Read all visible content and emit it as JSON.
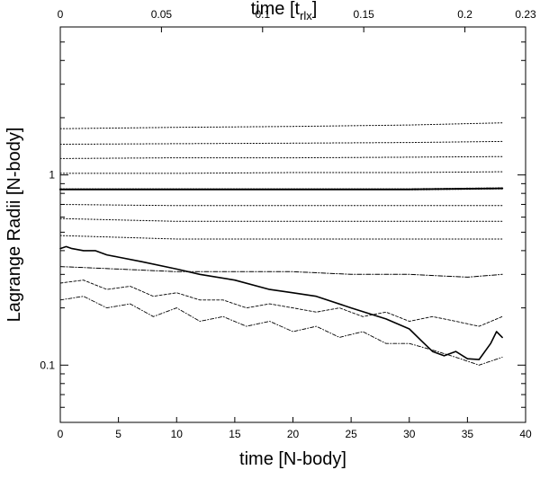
{
  "chart_data": {
    "type": "line",
    "title": "",
    "xlabel": "time [N-body]",
    "x2label": "time [t",
    "x2label_sub": "rlx",
    "x2label_close": "]",
    "ylabel": "Lagrange Radii [N-body]",
    "xlim": [
      0,
      40
    ],
    "ylim": [
      0.05,
      6.0
    ],
    "yscale": "log",
    "x2lim": [
      0,
      0.23
    ],
    "grid": false,
    "legend": "none",
    "xticks": [
      0,
      5,
      10,
      15,
      20,
      25,
      30,
      35,
      40
    ],
    "yticks": [
      {
        "value": 0.1,
        "label": "0.1"
      },
      {
        "value": 1,
        "label": "1"
      }
    ],
    "x2ticks": [
      {
        "value": 0,
        "label": "0"
      },
      {
        "value": 0.05,
        "label": "0.05"
      },
      {
        "value": 0.1,
        "label": "0.1"
      },
      {
        "value": 0.15,
        "label": "0.15"
      },
      {
        "value": 0.2,
        "label": "0.2"
      },
      {
        "value": 0.23,
        "label": "0.23"
      }
    ],
    "series": [
      {
        "style": "dotted",
        "x": [
          0,
          10,
          20,
          30,
          38
        ],
        "y": [
          1.75,
          1.78,
          1.8,
          1.83,
          1.88
        ]
      },
      {
        "style": "dotted",
        "x": [
          0,
          10,
          20,
          30,
          38
        ],
        "y": [
          1.45,
          1.46,
          1.47,
          1.48,
          1.5
        ]
      },
      {
        "style": "dotted",
        "x": [
          0,
          10,
          20,
          30,
          38
        ],
        "y": [
          1.22,
          1.23,
          1.23,
          1.24,
          1.25
        ]
      },
      {
        "style": "dotted",
        "x": [
          0,
          10,
          20,
          30,
          38
        ],
        "y": [
          1.02,
          1.02,
          1.03,
          1.03,
          1.04
        ]
      },
      {
        "style": "dotted-bold",
        "x": [
          0,
          10,
          20,
          30,
          38
        ],
        "y": [
          0.84,
          0.84,
          0.84,
          0.84,
          0.85
        ]
      },
      {
        "style": "dotted",
        "x": [
          0,
          10,
          20,
          30,
          38
        ],
        "y": [
          0.7,
          0.69,
          0.69,
          0.69,
          0.69
        ]
      },
      {
        "style": "dotted",
        "x": [
          0,
          10,
          20,
          30,
          38
        ],
        "y": [
          0.59,
          0.57,
          0.57,
          0.57,
          0.57
        ]
      },
      {
        "style": "dotted",
        "x": [
          0,
          10,
          20,
          30,
          38
        ],
        "y": [
          0.48,
          0.46,
          0.46,
          0.46,
          0.46
        ]
      },
      {
        "style": "dashdot",
        "x": [
          0,
          5,
          10,
          15,
          20,
          25,
          30,
          35,
          38
        ],
        "y": [
          0.33,
          0.32,
          0.31,
          0.31,
          0.31,
          0.3,
          0.3,
          0.29,
          0.3
        ]
      },
      {
        "style": "solid",
        "x": [
          0,
          0.5,
          1,
          2,
          3,
          4,
          5,
          7,
          10,
          12,
          15,
          18,
          20,
          22,
          25,
          28,
          30,
          31,
          32,
          33,
          34,
          35,
          36,
          37,
          37.5,
          38
        ],
        "y": [
          0.41,
          0.42,
          0.41,
          0.4,
          0.4,
          0.38,
          0.37,
          0.35,
          0.32,
          0.3,
          0.28,
          0.25,
          0.24,
          0.23,
          0.2,
          0.175,
          0.155,
          0.135,
          0.118,
          0.112,
          0.118,
          0.108,
          0.107,
          0.13,
          0.15,
          0.14
        ]
      },
      {
        "style": "dashed",
        "x": [
          0,
          2,
          4,
          6,
          8,
          10,
          12,
          14,
          16,
          18,
          20,
          22,
          24,
          26,
          28,
          30,
          32,
          34,
          36,
          38
        ],
        "y": [
          0.27,
          0.28,
          0.25,
          0.26,
          0.23,
          0.24,
          0.22,
          0.22,
          0.2,
          0.21,
          0.2,
          0.19,
          0.2,
          0.18,
          0.19,
          0.17,
          0.18,
          0.17,
          0.16,
          0.18
        ]
      },
      {
        "style": "dashdot-noisy",
        "x": [
          0,
          2,
          4,
          6,
          8,
          10,
          12,
          14,
          16,
          18,
          20,
          22,
          24,
          26,
          28,
          30,
          32,
          34,
          36,
          38
        ],
        "y": [
          0.22,
          0.23,
          0.2,
          0.21,
          0.18,
          0.2,
          0.17,
          0.18,
          0.16,
          0.17,
          0.15,
          0.16,
          0.14,
          0.15,
          0.13,
          0.13,
          0.12,
          0.11,
          0.1,
          0.11
        ]
      }
    ]
  }
}
